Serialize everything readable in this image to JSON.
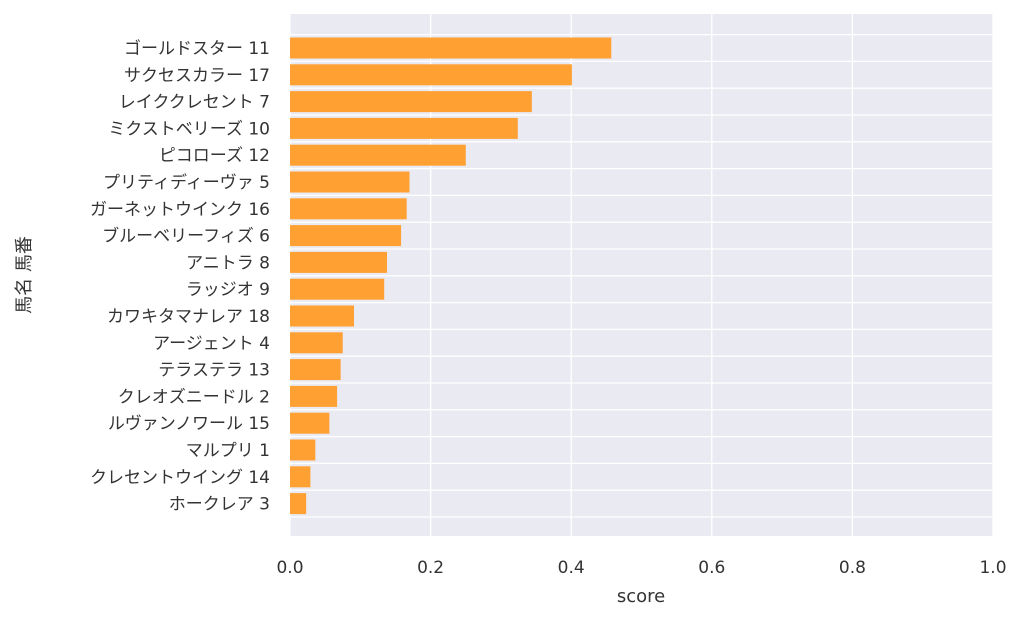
{
  "chart_data": {
    "type": "bar",
    "orientation": "horizontal",
    "xlabel": "score",
    "ylabel": "馬名 馬番",
    "xlim": [
      0,
      1.0
    ],
    "xticks": [
      "0.0",
      "0.2",
      "0.4",
      "0.6",
      "0.8",
      "1.0"
    ],
    "xtick_values": [
      0,
      0.2,
      0.4,
      0.6,
      0.8,
      1.0
    ],
    "grid": true,
    "background": "#eaeaf2",
    "bar_color": "#ffa033",
    "categories": [
      "ゴールドスター 11",
      "サクセスカラー 17",
      "レイククレセント 7",
      "ミクストベリーズ 10",
      "ピコローズ 12",
      "プリティディーヴァ 5",
      "ガーネットウインク 16",
      "ブルーベリーフィズ 6",
      "アニトラ 8",
      "ラッジオ 9",
      "カワキタマナレア 18",
      "アージェント 4",
      "テラステラ 13",
      "クレオズニードル 2",
      "ルヴァンノワール 15",
      "マルプリ 1",
      "クレセントウイング 14",
      "ホークレア 3"
    ],
    "values": [
      0.457,
      0.401,
      0.344,
      0.324,
      0.25,
      0.17,
      0.166,
      0.158,
      0.138,
      0.134,
      0.091,
      0.075,
      0.072,
      0.067,
      0.056,
      0.036,
      0.029,
      0.023
    ]
  }
}
